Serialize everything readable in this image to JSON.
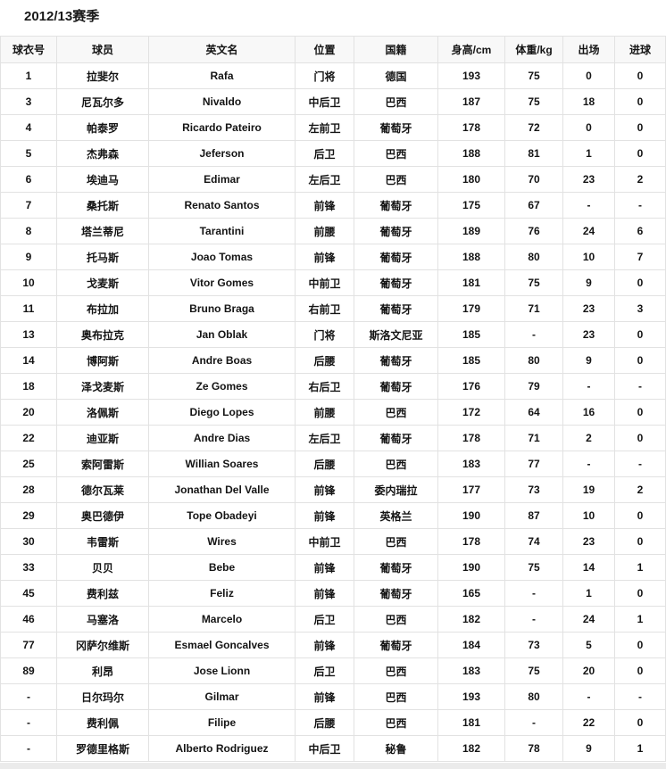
{
  "page": {
    "title": "2012/13赛季"
  },
  "table": {
    "columns": [
      "球衣号",
      "球员",
      "英文名",
      "位置",
      "国籍",
      "身高/cm",
      "体重/kg",
      "出场",
      "进球"
    ],
    "rows": [
      [
        "1",
        "拉斐尔",
        "Rafa",
        "门将",
        "德国",
        "193",
        "75",
        "0",
        "0"
      ],
      [
        "3",
        "尼瓦尔多",
        "Nivaldo",
        "中后卫",
        "巴西",
        "187",
        "75",
        "18",
        "0"
      ],
      [
        "4",
        "帕泰罗",
        "Ricardo Pateiro",
        "左前卫",
        "葡萄牙",
        "178",
        "72",
        "0",
        "0"
      ],
      [
        "5",
        "杰弗森",
        "Jeferson",
        "后卫",
        "巴西",
        "188",
        "81",
        "1",
        "0"
      ],
      [
        "6",
        "埃迪马",
        "Edimar",
        "左后卫",
        "巴西",
        "180",
        "70",
        "23",
        "2"
      ],
      [
        "7",
        "桑托斯",
        "Renato Santos",
        "前锋",
        "葡萄牙",
        "175",
        "67",
        "-",
        "-"
      ],
      [
        "8",
        "塔兰蒂尼",
        "Tarantini",
        "前腰",
        "葡萄牙",
        "189",
        "76",
        "24",
        "6"
      ],
      [
        "9",
        "托马斯",
        "Joao Tomas",
        "前锋",
        "葡萄牙",
        "188",
        "80",
        "10",
        "7"
      ],
      [
        "10",
        "戈麦斯",
        "Vitor Gomes",
        "中前卫",
        "葡萄牙",
        "181",
        "75",
        "9",
        "0"
      ],
      [
        "11",
        "布拉加",
        "Bruno Braga",
        "右前卫",
        "葡萄牙",
        "179",
        "71",
        "23",
        "3"
      ],
      [
        "13",
        "奥布拉克",
        "Jan Oblak",
        "门将",
        "斯洛文尼亚",
        "185",
        "-",
        "23",
        "0"
      ],
      [
        "14",
        "博阿斯",
        "Andre Boas",
        "后腰",
        "葡萄牙",
        "185",
        "80",
        "9",
        "0"
      ],
      [
        "18",
        "泽戈麦斯",
        "Ze Gomes",
        "右后卫",
        "葡萄牙",
        "176",
        "79",
        "-",
        "-"
      ],
      [
        "20",
        "洛佩斯",
        "Diego Lopes",
        "前腰",
        "巴西",
        "172",
        "64",
        "16",
        "0"
      ],
      [
        "22",
        "迪亚斯",
        "Andre Dias",
        "左后卫",
        "葡萄牙",
        "178",
        "71",
        "2",
        "0"
      ],
      [
        "25",
        "索阿雷斯",
        "Willian Soares",
        "后腰",
        "巴西",
        "183",
        "77",
        "-",
        "-"
      ],
      [
        "28",
        "德尔瓦莱",
        "Jonathan Del Valle",
        "前锋",
        "委内瑞拉",
        "177",
        "73",
        "19",
        "2"
      ],
      [
        "29",
        "奥巴德伊",
        "Tope Obadeyi",
        "前锋",
        "英格兰",
        "190",
        "87",
        "10",
        "0"
      ],
      [
        "30",
        "韦雷斯",
        "Wires",
        "中前卫",
        "巴西",
        "178",
        "74",
        "23",
        "0"
      ],
      [
        "33",
        "贝贝",
        "Bebe",
        "前锋",
        "葡萄牙",
        "190",
        "75",
        "14",
        "1"
      ],
      [
        "45",
        "费利兹",
        "Feliz",
        "前锋",
        "葡萄牙",
        "165",
        "-",
        "1",
        "0"
      ],
      [
        "46",
        "马塞洛",
        "Marcelo",
        "后卫",
        "巴西",
        "182",
        "-",
        "24",
        "1"
      ],
      [
        "77",
        "冈萨尔维斯",
        "Esmael Goncalves",
        "前锋",
        "葡萄牙",
        "184",
        "73",
        "5",
        "0"
      ],
      [
        "89",
        "利昂",
        "Jose Lionn",
        "后卫",
        "巴西",
        "183",
        "75",
        "20",
        "0"
      ],
      [
        "-",
        "日尔玛尔",
        "Gilmar",
        "前锋",
        "巴西",
        "193",
        "80",
        "-",
        "-"
      ],
      [
        "-",
        "费利佩",
        "Filipe",
        "后腰",
        "巴西",
        "181",
        "-",
        "22",
        "0"
      ],
      [
        "-",
        "罗德里格斯",
        "Alberto Rodriguez",
        "中后卫",
        "秘鲁",
        "182",
        "78",
        "9",
        "1"
      ]
    ]
  },
  "colors": {
    "header_bg": "#f8f8f8",
    "border": "#e2e2e2",
    "text": "#141414",
    "next_section_strip": "#ebebeb"
  }
}
